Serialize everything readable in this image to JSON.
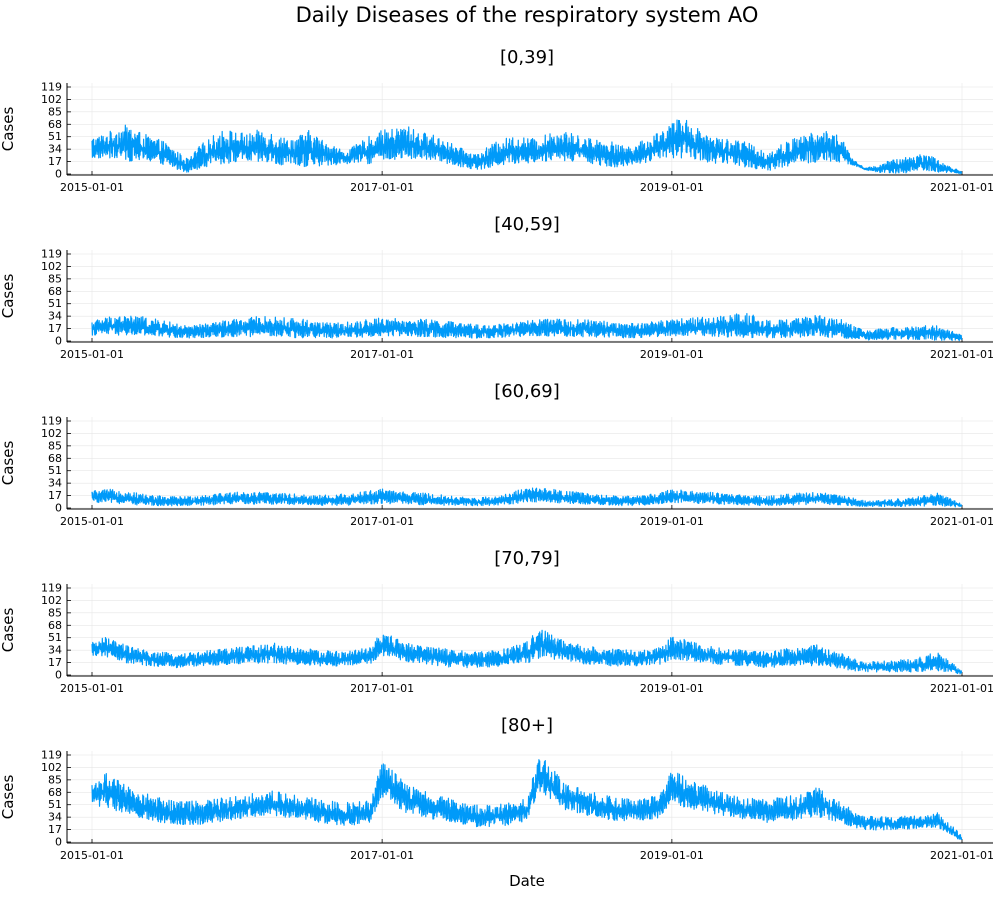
{
  "figure": {
    "title": "Daily Diseases of the respiratory system AO",
    "xlabel": "Date"
  },
  "colors": {
    "series": "#009AF9",
    "axis": "#000000",
    "grid": "#E6E6E6"
  },
  "chart_data": [
    {
      "type": "line",
      "title": "[0,39]",
      "ylabel": "Cases",
      "ylim": [
        0,
        119
      ],
      "yticks": [
        "0",
        "17",
        "34",
        "51",
        "68",
        "85",
        "102",
        "119"
      ],
      "xlim": [
        "2015-01-01",
        "2021-01-01"
      ],
      "xticks": [
        "2015-01-01",
        "2017-01-01",
        "2019-01-01",
        "2021-01-01"
      ],
      "grid": true,
      "x": [
        "2015-01-01",
        "2015-02-01",
        "2015-03-01",
        "2015-04-01",
        "2015-05-01",
        "2015-06-01",
        "2015-07-01",
        "2015-08-01",
        "2015-09-01",
        "2015-10-01",
        "2015-11-01",
        "2015-12-01",
        "2016-01-01",
        "2016-02-01",
        "2016-03-01",
        "2016-04-01",
        "2016-05-01",
        "2016-06-01",
        "2016-07-01",
        "2016-08-01",
        "2016-09-01",
        "2016-10-01",
        "2016-11-01",
        "2016-12-01",
        "2017-01-01",
        "2017-02-01",
        "2017-03-01",
        "2017-04-01",
        "2017-05-01",
        "2017-06-01",
        "2017-07-01",
        "2017-08-01",
        "2017-09-01",
        "2017-10-01",
        "2017-11-01",
        "2017-12-01",
        "2018-01-01",
        "2018-02-01",
        "2018-03-01",
        "2018-04-01",
        "2018-05-01",
        "2018-06-01",
        "2018-07-01",
        "2018-08-01",
        "2018-09-01",
        "2018-10-01",
        "2018-11-01",
        "2018-12-01",
        "2019-01-01",
        "2019-02-01",
        "2019-03-01",
        "2019-04-01",
        "2019-05-01",
        "2019-06-01",
        "2019-07-01",
        "2019-08-01",
        "2019-09-01",
        "2019-10-01",
        "2019-11-01",
        "2019-12-01",
        "2020-01-01",
        "2020-02-01",
        "2020-03-01",
        "2020-04-01",
        "2020-05-01",
        "2020-06-01",
        "2020-07-01",
        "2020-08-01",
        "2020-09-01",
        "2020-10-01",
        "2020-11-01",
        "2020-12-01",
        "2020-12-31"
      ],
      "series": [
        {
          "low": [
            20,
            22,
            20,
            18,
            16,
            16,
            12,
            6,
            2,
            8,
            12,
            14,
            16,
            15,
            14,
            12,
            10,
            8,
            10,
            10,
            12,
            14,
            15,
            14,
            18,
            18,
            20,
            20,
            18,
            16,
            12,
            8,
            6,
            8,
            12,
            14,
            15,
            16,
            18,
            18,
            17,
            16,
            12,
            10,
            8,
            12,
            16,
            20,
            22,
            22,
            20,
            16,
            14,
            14,
            10,
            6,
            4,
            8,
            12,
            14,
            15,
            16,
            15,
            12,
            6,
            2,
            1,
            1,
            2,
            4,
            2,
            2,
            0
          ],
          "high": [
            50,
            55,
            62,
            68,
            58,
            50,
            45,
            32,
            20,
            40,
            52,
            62,
            58,
            55,
            62,
            58,
            50,
            52,
            60,
            48,
            40,
            30,
            42,
            52,
            60,
            62,
            68,
            58,
            55,
            50,
            40,
            32,
            28,
            40,
            48,
            52,
            50,
            48,
            58,
            60,
            54,
            50,
            48,
            45,
            38,
            42,
            48,
            60,
            70,
            80,
            65,
            56,
            50,
            48,
            45,
            38,
            30,
            40,
            48,
            55,
            57,
            60,
            52,
            20,
            8,
            12,
            18,
            22,
            26,
            30,
            20,
            10,
            4
          ]
        }
      ]
    },
    {
      "type": "line",
      "title": "[40,59]",
      "ylabel": "Cases",
      "ylim": [
        0,
        119
      ],
      "yticks": [
        "0",
        "17",
        "34",
        "51",
        "68",
        "85",
        "102",
        "119"
      ],
      "xlim": [
        "2015-01-01",
        "2021-01-01"
      ],
      "xticks": [
        "2015-01-01",
        "2017-01-01",
        "2019-01-01",
        "2021-01-01"
      ],
      "grid": true,
      "x": [
        "2015-01-01",
        "2015-03-01",
        "2015-05-01",
        "2015-07-01",
        "2015-09-01",
        "2015-11-01",
        "2016-01-01",
        "2016-03-01",
        "2016-05-01",
        "2016-07-01",
        "2016-09-01",
        "2016-11-01",
        "2017-01-01",
        "2017-03-01",
        "2017-05-01",
        "2017-07-01",
        "2017-09-01",
        "2017-11-01",
        "2018-01-01",
        "2018-03-01",
        "2018-05-01",
        "2018-07-01",
        "2018-09-01",
        "2018-11-01",
        "2019-01-01",
        "2019-03-01",
        "2019-05-01",
        "2019-07-01",
        "2019-09-01",
        "2019-11-01",
        "2020-01-01",
        "2020-03-01",
        "2020-05-01",
        "2020-07-01",
        "2020-09-01",
        "2020-11-01",
        "2020-12-31"
      ],
      "series": [
        {
          "low": [
            8,
            8,
            6,
            5,
            4,
            5,
            6,
            6,
            5,
            4,
            4,
            5,
            6,
            6,
            5,
            4,
            4,
            5,
            6,
            6,
            6,
            5,
            4,
            5,
            7,
            7,
            6,
            4,
            4,
            5,
            6,
            4,
            1,
            2,
            2,
            1,
            0
          ],
          "high": [
            28,
            36,
            34,
            28,
            20,
            26,
            30,
            34,
            32,
            30,
            24,
            28,
            32,
            30,
            30,
            26,
            22,
            24,
            28,
            30,
            30,
            28,
            24,
            26,
            30,
            32,
            34,
            40,
            28,
            30,
            36,
            30,
            14,
            18,
            20,
            22,
            8
          ]
        }
      ]
    },
    {
      "type": "line",
      "title": "[60,69]",
      "ylabel": "Cases",
      "ylim": [
        0,
        119
      ],
      "yticks": [
        "0",
        "17",
        "34",
        "51",
        "68",
        "85",
        "102",
        "119"
      ],
      "xlim": [
        "2015-01-01",
        "2021-01-01"
      ],
      "xticks": [
        "2015-01-01",
        "2017-01-01",
        "2019-01-01",
        "2021-01-01"
      ],
      "grid": true,
      "x": [
        "2015-01-01",
        "2015-03-01",
        "2015-05-01",
        "2015-07-01",
        "2015-09-01",
        "2015-11-01",
        "2016-01-01",
        "2016-03-01",
        "2016-05-01",
        "2016-07-01",
        "2016-09-01",
        "2016-11-01",
        "2017-01-01",
        "2017-03-01",
        "2017-05-01",
        "2017-07-01",
        "2017-09-01",
        "2017-11-01",
        "2018-01-01",
        "2018-03-01",
        "2018-05-01",
        "2018-07-01",
        "2018-09-01",
        "2018-11-01",
        "2019-01-01",
        "2019-03-01",
        "2019-05-01",
        "2019-07-01",
        "2019-09-01",
        "2019-11-01",
        "2020-01-01",
        "2020-03-01",
        "2020-05-01",
        "2020-07-01",
        "2020-09-01",
        "2020-11-01",
        "2020-12-31"
      ],
      "series": [
        {
          "low": [
            8,
            6,
            4,
            3,
            3,
            4,
            5,
            5,
            5,
            4,
            3,
            4,
            6,
            5,
            4,
            3,
            3,
            4,
            8,
            7,
            6,
            4,
            3,
            4,
            7,
            6,
            5,
            4,
            3,
            4,
            5,
            4,
            2,
            2,
            2,
            3,
            1
          ],
          "high": [
            24,
            26,
            20,
            16,
            16,
            20,
            22,
            22,
            20,
            18,
            18,
            22,
            26,
            22,
            20,
            16,
            14,
            18,
            28,
            26,
            22,
            18,
            16,
            18,
            26,
            24,
            20,
            18,
            16,
            20,
            22,
            18,
            10,
            12,
            14,
            22,
            6
          ]
        }
      ]
    },
    {
      "type": "line",
      "title": "[70,79]",
      "ylabel": "Cases",
      "ylim": [
        0,
        119
      ],
      "yticks": [
        "0",
        "17",
        "34",
        "51",
        "68",
        "85",
        "102",
        "119"
      ],
      "xlim": [
        "2015-01-01",
        "2021-01-01"
      ],
      "xticks": [
        "2015-01-01",
        "2017-01-01",
        "2019-01-01",
        "2021-01-01"
      ],
      "grid": true,
      "x": [
        "2015-01-01",
        "2015-02-01",
        "2015-04-01",
        "2015-06-01",
        "2015-08-01",
        "2015-10-01",
        "2015-12-01",
        "2016-02-01",
        "2016-04-01",
        "2016-06-01",
        "2016-08-01",
        "2016-10-01",
        "2016-12-01",
        "2017-01-01",
        "2017-03-01",
        "2017-05-01",
        "2017-07-01",
        "2017-09-01",
        "2017-11-01",
        "2018-01-01",
        "2018-02-01",
        "2018-04-01",
        "2018-06-01",
        "2018-08-01",
        "2018-10-01",
        "2018-12-01",
        "2019-01-01",
        "2019-03-01",
        "2019-05-01",
        "2019-07-01",
        "2019-09-01",
        "2019-11-01",
        "2020-01-01",
        "2020-03-01",
        "2020-05-01",
        "2020-07-01",
        "2020-09-01",
        "2020-11-01",
        "2020-12-31"
      ],
      "series": [
        {
          "low": [
            26,
            26,
            16,
            12,
            10,
            12,
            14,
            16,
            16,
            14,
            12,
            12,
            14,
            26,
            18,
            14,
            10,
            10,
            12,
            16,
            22,
            20,
            14,
            12,
            12,
            14,
            22,
            18,
            14,
            12,
            10,
            12,
            12,
            8,
            4,
            4,
            4,
            6,
            1
          ],
          "high": [
            44,
            52,
            40,
            32,
            30,
            32,
            36,
            40,
            44,
            38,
            34,
            32,
            38,
            60,
            44,
            40,
            34,
            32,
            36,
            46,
            64,
            48,
            40,
            36,
            34,
            38,
            54,
            44,
            38,
            34,
            32,
            38,
            42,
            30,
            18,
            20,
            22,
            32,
            6
          ]
        }
      ]
    },
    {
      "type": "line",
      "title": "[80+]",
      "ylabel": "Cases",
      "xlabel": "Date",
      "ylim": [
        0,
        119
      ],
      "yticks": [
        "0",
        "17",
        "34",
        "51",
        "68",
        "85",
        "102",
        "119"
      ],
      "xlim": [
        "2015-01-01",
        "2021-01-01"
      ],
      "xticks": [
        "2015-01-01",
        "2017-01-01",
        "2019-01-01",
        "2021-01-01"
      ],
      "grid": true,
      "x": [
        "2015-01-01",
        "2015-02-01",
        "2015-04-01",
        "2015-06-01",
        "2015-08-01",
        "2015-10-01",
        "2015-12-01",
        "2016-02-01",
        "2016-04-01",
        "2016-06-01",
        "2016-08-01",
        "2016-10-01",
        "2016-12-01",
        "2017-01-01",
        "2017-03-01",
        "2017-05-01",
        "2017-07-01",
        "2017-09-01",
        "2017-11-01",
        "2018-01-01",
        "2018-02-01",
        "2018-04-01",
        "2018-06-01",
        "2018-08-01",
        "2018-10-01",
        "2018-12-01",
        "2019-01-01",
        "2019-03-01",
        "2019-05-01",
        "2019-07-01",
        "2019-09-01",
        "2019-11-01",
        "2020-01-01",
        "2020-03-01",
        "2020-05-01",
        "2020-07-01",
        "2020-09-01",
        "2020-11-01",
        "2020-12-31"
      ],
      "series": [
        {
          "low": [
            50,
            48,
            36,
            28,
            24,
            24,
            28,
            34,
            36,
            32,
            26,
            22,
            26,
            62,
            40,
            32,
            26,
            20,
            22,
            28,
            70,
            44,
            36,
            30,
            28,
            32,
            52,
            42,
            36,
            30,
            26,
            30,
            34,
            26,
            16,
            16,
            18,
            20,
            0
          ],
          "high": [
            80,
            96,
            76,
            64,
            56,
            56,
            62,
            66,
            70,
            64,
            58,
            54,
            58,
            110,
            82,
            66,
            58,
            50,
            52,
            60,
            120,
            86,
            70,
            62,
            58,
            64,
            98,
            82,
            70,
            62,
            58,
            64,
            76,
            54,
            36,
            34,
            36,
            40,
            10
          ]
        }
      ]
    }
  ]
}
